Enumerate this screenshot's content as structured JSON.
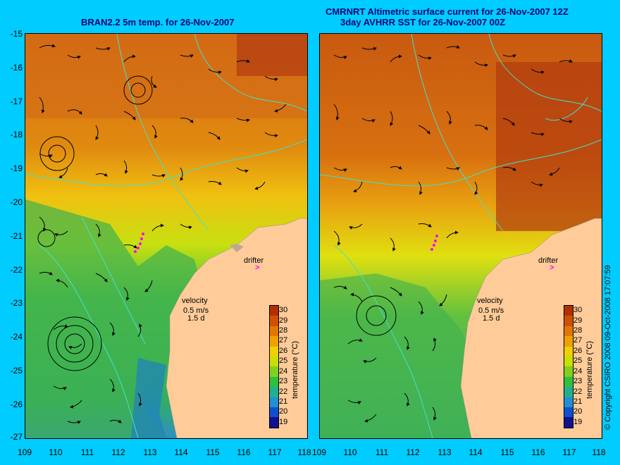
{
  "left_panel": {
    "title": "BRAN2.2 5m temp. for 26-Nov-2007"
  },
  "right_panel": {
    "title_line1": "CMRNRT Altimetric surface current for 26-Nov-2007 12Z",
    "title_line2": "3day AVHRR SST for 26-Nov-2007 00Z"
  },
  "y_axis": {
    "ticks": [
      "-15",
      "-16",
      "-17",
      "-18",
      "-19",
      "-20",
      "-21",
      "-22",
      "-23",
      "-24",
      "-25",
      "-26",
      "-27"
    ]
  },
  "x_axis": {
    "ticks": [
      "109",
      "110",
      "111",
      "112",
      "113",
      "114",
      "115",
      "116",
      "117",
      "118"
    ]
  },
  "annotations": {
    "drifter": "drifter",
    "drifter_symbol": ">",
    "velocity": "velocity",
    "velocity_scale": "0.5 m/s",
    "time_scale": "1.5 d"
  },
  "colorbar": {
    "title": "temperature (°C)",
    "ticks": [
      "30",
      "29",
      "28",
      "27",
      "26",
      "25",
      "24",
      "23",
      "22",
      "21",
      "20",
      "19"
    ],
    "colors": [
      "#b03000",
      "#d05000",
      "#e07800",
      "#f0a000",
      "#f0d000",
      "#c8e000",
      "#80d020",
      "#30c040",
      "#20b090",
      "#2090d0",
      "#1050d0",
      "#101090"
    ]
  },
  "credit": "© Copyright CSIRO 2008   09-Oct-2008 17:07:59",
  "colors": {
    "background": "#00ccff",
    "land": "#ffcc99",
    "title": "#000080",
    "contour": "#40e0d0",
    "drifter_track": "#ff00ff"
  }
}
